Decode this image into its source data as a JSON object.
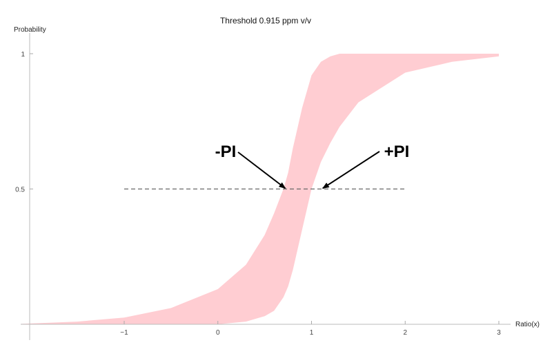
{
  "chart_data": {
    "type": "area",
    "title": "Threshold  0.915 ppm v/v",
    "xlabel": "Ratio(x)",
    "ylabel": "Probability",
    "xlim": [
      -2.1,
      3.0
    ],
    "ylim": [
      0,
      1.0
    ],
    "x_ticks": [
      -1,
      0,
      1,
      2,
      3
    ],
    "x_tick_labels": [
      "−1",
      "0",
      "1",
      "2",
      "3"
    ],
    "y_ticks": [
      0.5,
      1
    ],
    "y_tick_labels": [
      "0.5",
      "1"
    ],
    "grid": false,
    "band": {
      "color": "#ffcdd2",
      "x": [
        -2.1,
        -1.5,
        -1,
        -0.5,
        0,
        0.3,
        0.5,
        0.6,
        0.7,
        0.75,
        0.8,
        0.9,
        1,
        1.1,
        1.2,
        1.3,
        1.5,
        2,
        2.5,
        3
      ],
      "lower": [
        0,
        0,
        0,
        0,
        0,
        0.01,
        0.03,
        0.05,
        0.1,
        0.14,
        0.2,
        0.35,
        0.5,
        0.6,
        0.67,
        0.73,
        0.82,
        0.93,
        0.97,
        0.99
      ],
      "upper": [
        0.0015,
        0.01,
        0.025,
        0.06,
        0.13,
        0.22,
        0.33,
        0.41,
        0.5,
        0.56,
        0.65,
        0.8,
        0.92,
        0.97,
        0.99,
        1,
        1,
        1,
        1,
        1
      ]
    },
    "reference_line": {
      "y": 0.5,
      "x_range": [
        -1,
        2
      ],
      "style": "dashed",
      "color": "#666666"
    },
    "annotations": [
      {
        "text": "-PI",
        "target": [
          0.72,
          0.5
        ]
      },
      {
        "text": "+PI",
        "target": [
          1.12,
          0.5
        ]
      }
    ]
  }
}
